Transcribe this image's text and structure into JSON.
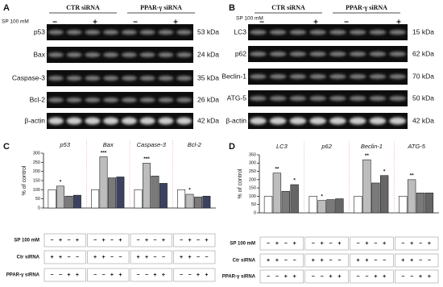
{
  "panels": [
    {
      "letter": "A",
      "groups": [
        "CTR siRNA",
        "PPAR-γ siRNA"
      ],
      "treatment": "SP 100 mM",
      "signs": [
        "−",
        "+",
        "−",
        "+"
      ],
      "rows": [
        {
          "label": "p53",
          "kda": "53 kDa"
        },
        {
          "label": "Bax",
          "kda": "24 kDa"
        },
        {
          "label": "Caspase-3",
          "kda": "35 kDa"
        },
        {
          "label": "Bcl-2",
          "kda": "26 kDa"
        },
        {
          "label": "β-actin",
          "kda": "42 kDa"
        }
      ]
    },
    {
      "letter": "B",
      "groups": [
        "CTR siRNA",
        "PPAR-γ siRNA"
      ],
      "treatment": "SP 100 mM",
      "signs": [
        "−",
        "+",
        "−",
        "+"
      ],
      "rows": [
        {
          "label": "LC3",
          "kda": "15 kDa"
        },
        {
          "label": "p62",
          "kda": "62 kDa"
        },
        {
          "label": "Beclin-1",
          "kda": "70 kDa"
        },
        {
          "label": "ATG-5",
          "kda": "50 kDa"
        },
        {
          "label": "β-actin",
          "kda": "42 kDa"
        }
      ]
    }
  ],
  "chart_data": [
    {
      "type": "bar",
      "letter": "C",
      "ylabel": "% of control",
      "categories": [
        "p53",
        "Bax",
        "Caspase-3",
        "Bcl-2"
      ],
      "ylim": [
        0,
        300
      ],
      "yticks": [
        0,
        50,
        100,
        150,
        200,
        250,
        300
      ],
      "series": [
        {
          "color": "#ffffff",
          "values": [
            100,
            100,
            100,
            100
          ],
          "annotations": [
            null,
            null,
            null,
            null
          ]
        },
        {
          "color": "#bdbdbd",
          "values": [
            120,
            280,
            245,
            75
          ],
          "annotations": [
            "*",
            "***",
            "***",
            "*"
          ]
        },
        {
          "color": "#7a7a7a",
          "values": [
            65,
            165,
            175,
            60
          ],
          "annotations": [
            null,
            null,
            null,
            null
          ]
        },
        {
          "color": "#3d4160",
          "values": [
            70,
            170,
            135,
            65
          ],
          "annotations": [
            null,
            null,
            null,
            null
          ]
        }
      ],
      "conditions": [
        {
          "label": "SP 100 mM",
          "signs": [
            "−",
            "+",
            "−",
            "+"
          ]
        },
        {
          "label": "Ctr siRNA",
          "signs": [
            "+",
            "+",
            "−",
            "−"
          ]
        },
        {
          "label": "PPAR-γ siRNA",
          "signs": [
            "−",
            "−",
            "+",
            "+"
          ]
        }
      ]
    },
    {
      "type": "bar",
      "letter": "D",
      "ylabel": "% of control",
      "categories": [
        "LC3",
        "p62",
        "Beclin-1",
        "ATG-5"
      ],
      "ylim": [
        0,
        350
      ],
      "yticks": [
        0,
        50,
        100,
        150,
        200,
        250,
        300,
        350
      ],
      "series": [
        {
          "color": "#ffffff",
          "values": [
            100,
            100,
            100,
            100
          ],
          "annotations": [
            null,
            null,
            null,
            null
          ]
        },
        {
          "color": "#bdbdbd",
          "values": [
            240,
            75,
            320,
            200
          ],
          "annotations": [
            "**",
            "*",
            "**",
            "**"
          ]
        },
        {
          "color": "#7a7a7a",
          "values": [
            130,
            80,
            180,
            120
          ],
          "annotations": [
            null,
            null,
            null,
            null
          ]
        },
        {
          "color": "#666666",
          "values": [
            170,
            85,
            225,
            120
          ],
          "annotations": [
            "*",
            null,
            "*",
            null
          ]
        }
      ],
      "conditions": [
        {
          "label": "SP 100 mM",
          "signs": [
            "−",
            "+",
            "−",
            "+"
          ]
        },
        {
          "label": "Ctr siRNA",
          "signs": [
            "+",
            "+",
            "−",
            "−"
          ]
        },
        {
          "label": "PPAR-γ siRNA",
          "signs": [
            "−",
            "−",
            "+",
            "+"
          ]
        }
      ]
    }
  ]
}
